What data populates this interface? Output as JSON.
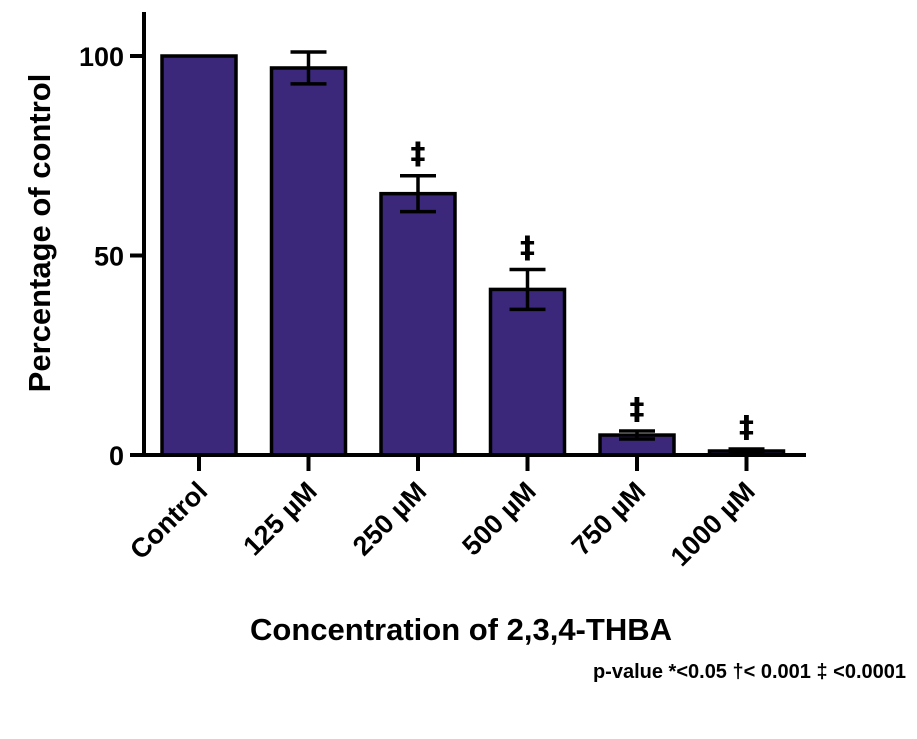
{
  "chart_data": {
    "type": "bar",
    "categories": [
      "Control",
      "125 µM",
      "250 µM",
      "500 µM",
      "750 µM",
      "1000 µM"
    ],
    "values": [
      100,
      97,
      65.5,
      41.5,
      5,
      1
    ],
    "errors": [
      0,
      4,
      4.5,
      5,
      1,
      0.5
    ],
    "significance": [
      "",
      "",
      "‡",
      "‡",
      "‡",
      "‡"
    ],
    "ylabel": "Percentage of control",
    "xlabel": "Concentration of 2,3,4-THBA",
    "yticks": [
      0,
      50,
      100
    ],
    "ylim": [
      0,
      110
    ],
    "footnote": "p-value *<0.05 †< 0.001 ‡ <0.0001",
    "bar_color": "#3b287a",
    "grid": false
  }
}
